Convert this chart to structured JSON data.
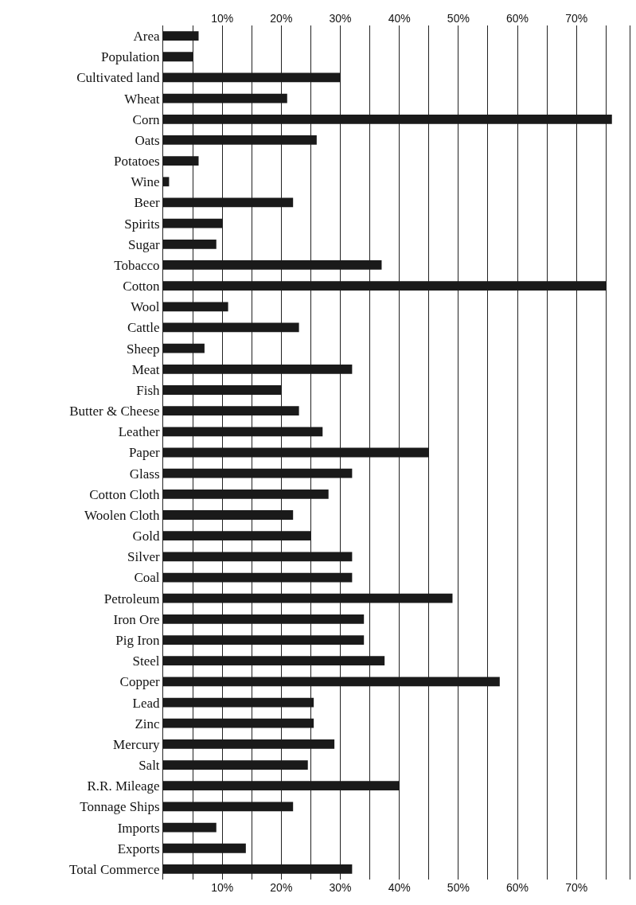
{
  "chart_data": {
    "type": "bar",
    "orientation": "horizontal",
    "categories": [
      "Area",
      "Population",
      "Cultivated land",
      "Wheat",
      "Corn",
      "Oats",
      "Potatoes",
      "Wine",
      "Beer",
      "Spirits",
      "Sugar",
      "Tobacco",
      "Cotton",
      "Wool",
      "Cattle",
      "Sheep",
      "Meat",
      "Fish",
      "Butter & Cheese",
      "Leather",
      "Paper",
      "Glass",
      "Cotton Cloth",
      "Woolen Cloth",
      "Gold",
      "Silver",
      "Coal",
      "Petroleum",
      "Iron Ore",
      "Pig Iron",
      "Steel",
      "Copper",
      "Lead",
      "Zinc",
      "Mercury",
      "Salt",
      "R.R. Mileage",
      "Tonnage Ships",
      "Imports",
      "Exports",
      "Total Commerce"
    ],
    "values": [
      6,
      5,
      30,
      21,
      76,
      26,
      6,
      1,
      22,
      10,
      9,
      37,
      75,
      11,
      23,
      7,
      32,
      20,
      23,
      27,
      45,
      32,
      28,
      22,
      25,
      32,
      32,
      49,
      34,
      34,
      37.5,
      57,
      25.5,
      25.5,
      29,
      24.5,
      40,
      22,
      9,
      14,
      32
    ],
    "color": "#1a1a1a",
    "xlim": [
      0,
      79
    ],
    "xticks": [
      {
        "value": 5,
        "label": null
      },
      {
        "value": 10,
        "label": "10%"
      },
      {
        "value": 15,
        "label": null
      },
      {
        "value": 20,
        "label": "20%"
      },
      {
        "value": 25,
        "label": null
      },
      {
        "value": 30,
        "label": "30%"
      },
      {
        "value": 35,
        "label": null
      },
      {
        "value": 40,
        "label": "40%"
      },
      {
        "value": 45,
        "label": null
      },
      {
        "value": 50,
        "label": "50%"
      },
      {
        "value": 55,
        "label": null
      },
      {
        "value": 60,
        "label": "60%"
      },
      {
        "value": 65,
        "label": null
      },
      {
        "value": 70,
        "label": "70%"
      },
      {
        "value": 75,
        "label": null
      }
    ],
    "x2lim": [
      0,
      79
    ],
    "x2ticks": [
      {
        "value": 5,
        "label": null
      },
      {
        "value": 10,
        "label": "10%"
      },
      {
        "value": 15,
        "label": null
      },
      {
        "value": 20,
        "label": "20%"
      },
      {
        "value": 25,
        "label": null
      },
      {
        "value": 30,
        "label": "30%"
      },
      {
        "value": 35,
        "label": null
      },
      {
        "value": 40,
        "label": "40%"
      },
      {
        "value": 45,
        "label": null
      },
      {
        "value": 50,
        "label": "50%"
      },
      {
        "value": 55,
        "label": null
      },
      {
        "value": 60,
        "label": "60%"
      },
      {
        "value": 65,
        "label": null
      },
      {
        "value": 70,
        "label": "70%"
      },
      {
        "value": 75,
        "label": null
      }
    ],
    "grid": "x"
  }
}
